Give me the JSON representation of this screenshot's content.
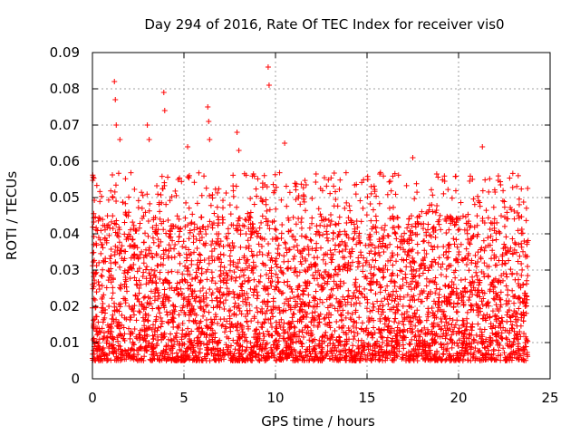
{
  "chart_data": {
    "type": "scatter",
    "title": "Day 294 of 2016, Rate Of TEC Index for receiver vis0",
    "xlabel": "GPS time / hours",
    "ylabel": "ROTI / TECUs",
    "xlim": [
      0,
      25
    ],
    "ylim": [
      0,
      0.09
    ],
    "x_ticks": [
      0,
      5,
      10,
      15,
      20,
      25
    ],
    "y_ticks": [
      0,
      0.01,
      0.02,
      0.03,
      0.04,
      0.05,
      0.06,
      0.07,
      0.08,
      0.09
    ],
    "x_tick_labels": [
      "0",
      "5",
      "10",
      "15",
      "20",
      "25"
    ],
    "y_tick_labels": [
      "0",
      "0.01",
      "0.02",
      "0.03",
      "0.04",
      "0.05",
      "0.06",
      "0.07",
      "0.08",
      "0.09"
    ],
    "grid": true,
    "marker": "+",
    "series": [
      {
        "name": "ROTI",
        "color": "#ff0000",
        "x_range": [
          0,
          23.8
        ],
        "typical_range": [
          0.005,
          0.045
        ],
        "peaks": [
          {
            "x": 1.2,
            "y": 0.082
          },
          {
            "x": 1.25,
            "y": 0.077
          },
          {
            "x": 1.3,
            "y": 0.07
          },
          {
            "x": 1.5,
            "y": 0.066
          },
          {
            "x": 3.0,
            "y": 0.07
          },
          {
            "x": 3.1,
            "y": 0.066
          },
          {
            "x": 3.9,
            "y": 0.079
          },
          {
            "x": 3.95,
            "y": 0.074
          },
          {
            "x": 6.3,
            "y": 0.075
          },
          {
            "x": 6.35,
            "y": 0.071
          },
          {
            "x": 6.4,
            "y": 0.066
          },
          {
            "x": 7.9,
            "y": 0.068
          },
          {
            "x": 9.6,
            "y": 0.086
          },
          {
            "x": 9.65,
            "y": 0.081
          },
          {
            "x": 10.5,
            "y": 0.065
          },
          {
            "x": 17.5,
            "y": 0.061
          },
          {
            "x": 21.3,
            "y": 0.064
          },
          {
            "x": 5.2,
            "y": 0.064
          },
          {
            "x": 8.0,
            "y": 0.063
          }
        ]
      }
    ]
  }
}
